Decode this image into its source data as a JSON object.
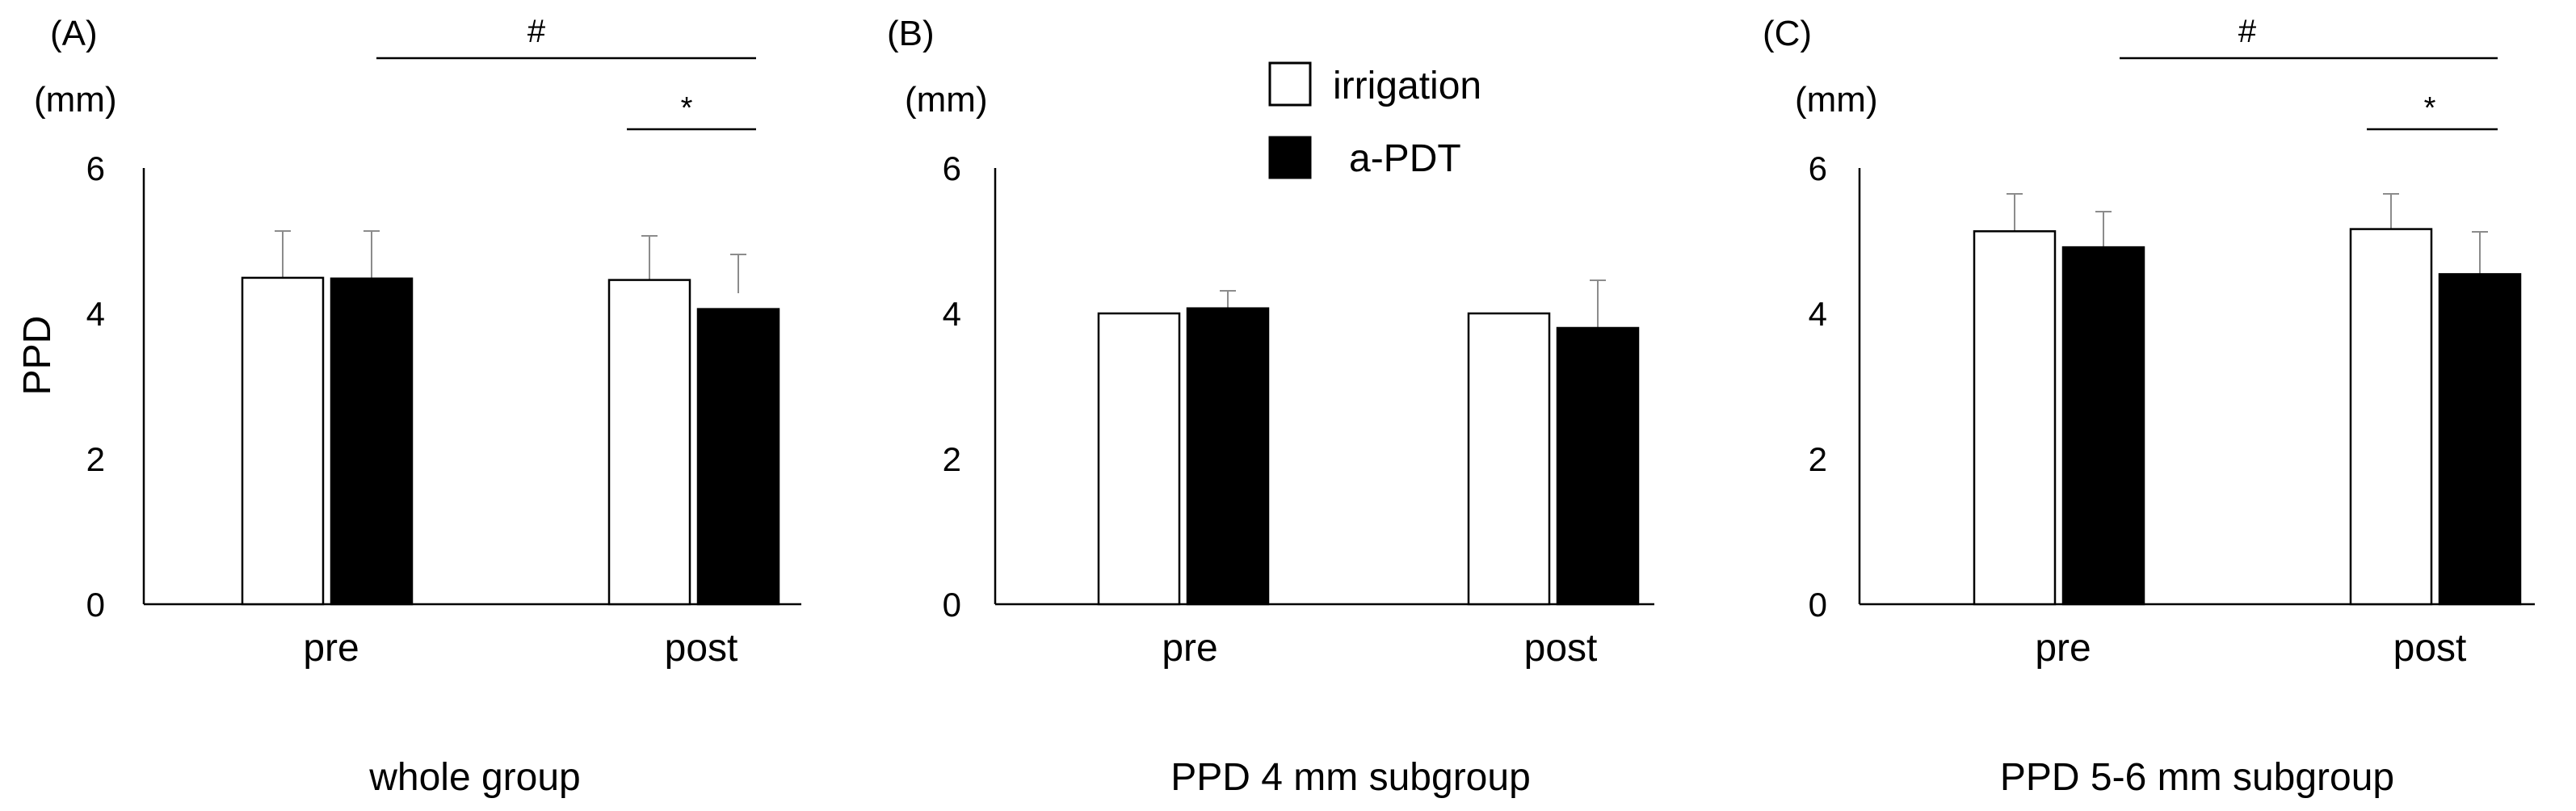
{
  "chart_data": [
    {
      "type": "bar",
      "panel_label": "(A)",
      "unit_label": "(mm)",
      "ylabel": "PPD",
      "subtitle": "whole group",
      "categories": [
        "pre",
        "post"
      ],
      "ylim": [
        0,
        6
      ],
      "yticks": [
        "0",
        "2",
        "4",
        "6"
      ],
      "series": [
        {
          "name": "irrigation",
          "values": [
            4.53,
            4.47
          ],
          "errors": [
            0.62,
            0.62
          ]
        },
        {
          "name": "a-PDT",
          "values": [
            4.51,
            4.1
          ],
          "errors": [
            0.64,
            0.74
          ]
        }
      ],
      "significance": [
        {
          "symbol": "#",
          "from": "pre a-PDT",
          "to": "post a-PDT"
        },
        {
          "symbol": "*",
          "from": "post irrigation",
          "to": "post a-PDT"
        }
      ]
    },
    {
      "type": "bar",
      "panel_label": "(B)",
      "unit_label": "(mm)",
      "ylabel": "",
      "subtitle": "PPD 4 mm subgroup",
      "categories": [
        "pre",
        "post"
      ],
      "ylim": [
        0,
        6
      ],
      "yticks": [
        "0",
        "2",
        "4",
        "6"
      ],
      "series": [
        {
          "name": "irrigation",
          "values": [
            4.0,
            4.0
          ],
          "errors": [
            0,
            0
          ]
        },
        {
          "name": "a-PDT",
          "values": [
            4.07,
            3.8
          ],
          "errors": [
            0.25,
            0.65
          ]
        }
      ],
      "significance": []
    },
    {
      "type": "bar",
      "panel_label": "(C)",
      "unit_label": "(mm)",
      "ylabel": "",
      "subtitle": "PPD 5-6 mm subgroup",
      "categories": [
        "pre",
        "post"
      ],
      "ylim": [
        0,
        6
      ],
      "yticks": [
        "0",
        "2",
        "4",
        "6"
      ],
      "series": [
        {
          "name": "irrigation",
          "values": [
            5.13,
            5.16
          ],
          "errors": [
            0.62,
            0.6
          ]
        },
        {
          "name": "a-PDT",
          "values": [
            4.91,
            4.54
          ],
          "errors": [
            0.62,
            0.72
          ]
        }
      ],
      "significance": [
        {
          "symbol": "#",
          "from": "pre a-PDT",
          "to": "post a-PDT"
        },
        {
          "symbol": "*",
          "from": "post irrigation",
          "to": "post a-PDT"
        }
      ]
    }
  ],
  "legend": {
    "items": [
      {
        "label": "irrigation",
        "fill": "#ffffff"
      },
      {
        "label": "a-PDT",
        "fill": "#000000"
      }
    ],
    "placement": "top-center"
  },
  "colors": {
    "irrigation": "#ffffff",
    "a_pdt": "#000000",
    "axis": "#000000",
    "error_bar": "#8c8c8c",
    "sig_line": "#000000"
  }
}
